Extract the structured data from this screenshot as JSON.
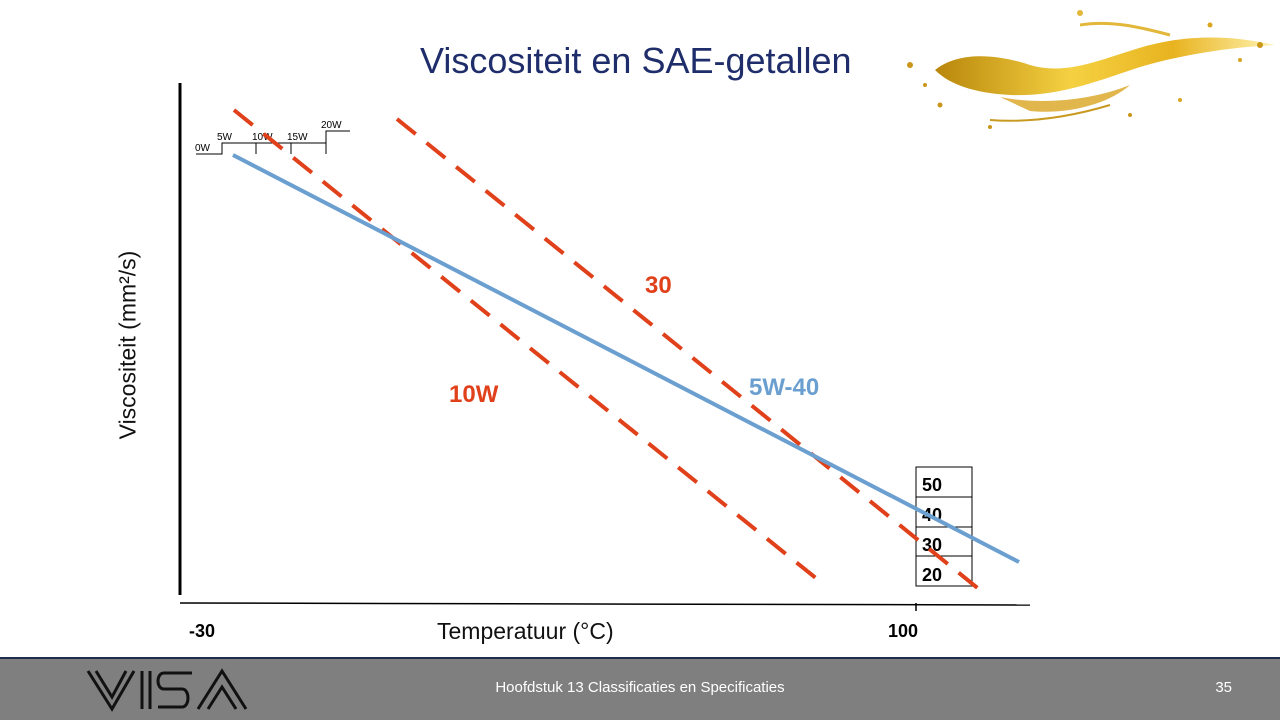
{
  "slide": {
    "title": "Viscositeit en SAE-getallen",
    "page_number": "35",
    "footer": "Hoofdstuk 13  Classificaties en Specificaties",
    "logo_text": "VISA"
  },
  "diagram": {
    "y_axis_label": "Viscositeit (mm²/s)",
    "x_axis_label": "Temperatuur (°C)",
    "x_ticks": [
      "-30",
      "100"
    ],
    "winter_grades": [
      "0W",
      "5W",
      "10W",
      "15W",
      "20W"
    ],
    "summer_grades": [
      "50",
      "40",
      "30",
      "20"
    ],
    "lines": {
      "multigrade": {
        "label": "5W-40",
        "color": "#6a9fd0"
      },
      "grade_10w": {
        "label": "10W",
        "color": "#e0401a"
      },
      "grade_30": {
        "label": "30",
        "color": "#e0401a"
      }
    }
  },
  "colors": {
    "title": "#1f2d6b",
    "dashed_lines": "#e0401a",
    "multigrade_line": "#6a9fd0",
    "footer_bg": "#7f7f7f"
  }
}
